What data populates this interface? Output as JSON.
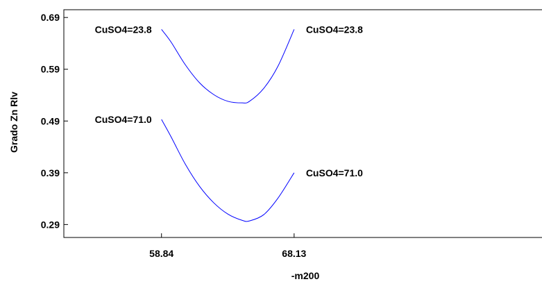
{
  "chart_data": {
    "type": "line",
    "title": "",
    "xlabel": "-m200",
    "ylabel": "Grado Zn Rlv",
    "xlim": [
      52.0,
      87.0
    ],
    "ylim": [
      0.265,
      0.705
    ],
    "x_ticks": [
      {
        "value": 58.84,
        "label": "58.84"
      },
      {
        "value": 68.13,
        "label": "68.13"
      }
    ],
    "y_ticks": [
      {
        "value": 0.29,
        "label": "0.29"
      },
      {
        "value": 0.39,
        "label": "0.39"
      },
      {
        "value": 0.49,
        "label": "0.49"
      },
      {
        "value": 0.59,
        "label": "0.59"
      },
      {
        "value": 0.69,
        "label": "0.69"
      }
    ],
    "grid": false,
    "series": [
      {
        "color": "#0000ff",
        "x": [
          58.84,
          59.5,
          60.5,
          61.5,
          62.5,
          63.5,
          64.5,
          65.0,
          66.0,
          67.0,
          68.13
        ],
        "y": [
          0.667,
          0.643,
          0.599,
          0.564,
          0.541,
          0.528,
          0.525,
          0.528,
          0.553,
          0.596,
          0.667
        ]
      },
      {
        "color": "#0000ff",
        "x": [
          58.84,
          59.5,
          60.5,
          61.5,
          62.5,
          63.5,
          64.5,
          65.0,
          66.0,
          67.0,
          68.13
        ],
        "y": [
          0.493,
          0.46,
          0.407,
          0.364,
          0.332,
          0.31,
          0.298,
          0.297,
          0.309,
          0.341,
          0.39
        ]
      }
    ],
    "annotations": [
      {
        "text": "CuSO4=23.8",
        "x": 58.84,
        "y": 0.667,
        "side": "left"
      },
      {
        "text": "CuSO4=23.8",
        "x": 68.13,
        "y": 0.667,
        "side": "right"
      },
      {
        "text": "CuSO4=71.0",
        "x": 58.84,
        "y": 0.493,
        "side": "left"
      },
      {
        "text": "CuSO4=71.0",
        "x": 68.13,
        "y": 0.39,
        "side": "right"
      }
    ]
  }
}
